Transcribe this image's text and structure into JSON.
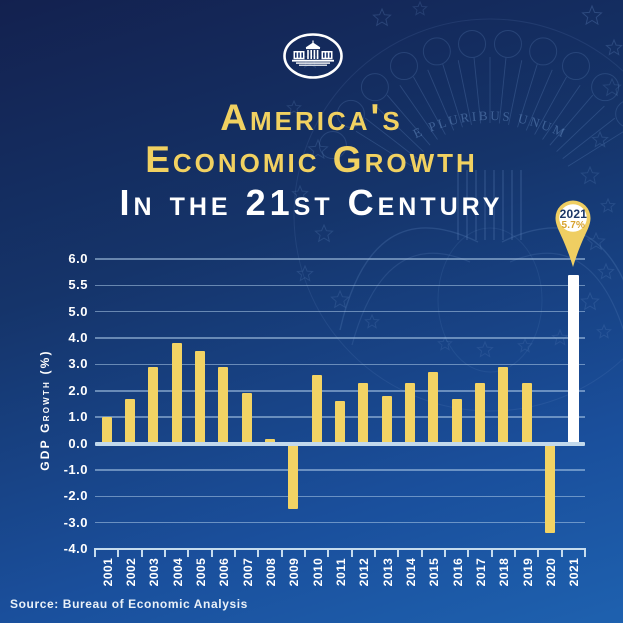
{
  "poster": {
    "title_line1": "America's",
    "title_line2": "Economic Growth",
    "title_line3": "In the 21st Century",
    "source": "Source: Bureau of Economic Analysis"
  },
  "callout": {
    "year": "2021",
    "value": "5.7%"
  },
  "watermark": {
    "motto": "E PLURIBUS UNUM"
  },
  "colors": {
    "background_top": "#13214f",
    "background_bottom": "#1e61af",
    "title_gold": "#f1d161",
    "bar_gold": "#f2d364",
    "highlight_bar": "#ffffff",
    "gridline": "#adcae7",
    "axis_line": "#c6dcee",
    "pin_gold": "#efce62",
    "pin_year_navy": "#1c3767",
    "pin_value_amber": "#d7a22e",
    "text_white": "#ffffff"
  },
  "chart_data": {
    "type": "bar",
    "title": "America's Economic Growth in the 21st Century",
    "ylabel": "GDP Growth (%)",
    "xlabel": "",
    "categories": [
      "2001",
      "2002",
      "2003",
      "2004",
      "2005",
      "2006",
      "2007",
      "2008",
      "2009",
      "2010",
      "2011",
      "2012",
      "2013",
      "2014",
      "2015",
      "2016",
      "2017",
      "2018",
      "2019",
      "2020",
      "2021"
    ],
    "values": [
      1.0,
      1.7,
      2.9,
      3.8,
      3.5,
      2.9,
      1.9,
      0.1,
      -2.5,
      2.6,
      1.6,
      2.3,
      1.8,
      2.3,
      2.7,
      1.7,
      2.3,
      2.9,
      2.3,
      -3.4,
      5.7
    ],
    "highlight_index": 20,
    "y_tick_labels": [
      "6.0",
      "5.5",
      "5.0",
      "4.0",
      "3.0",
      "2.0",
      "1.0",
      "0.0",
      "-1.0",
      "-2.0",
      "-3.0",
      "-4.0"
    ],
    "ylim": [
      -4.0,
      6.0
    ],
    "grid": "horizontal",
    "legend": "none",
    "annotation": "2021: 5.7%"
  }
}
